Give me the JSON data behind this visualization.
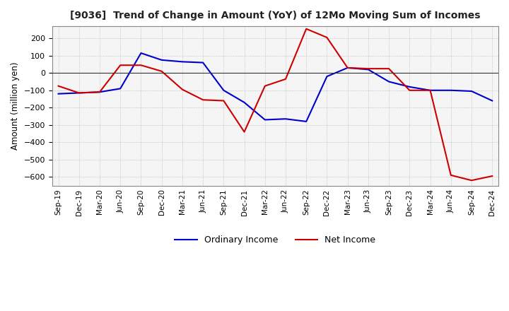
{
  "title": "[9036]  Trend of Change in Amount (YoY) of 12Mo Moving Sum of Incomes",
  "ylabel": "Amount (million yen)",
  "ylim": [
    -650,
    270
  ],
  "yticks": [
    200,
    100,
    0,
    -100,
    -200,
    -300,
    -400,
    -500,
    -600
  ],
  "background_color": "#ffffff",
  "plot_bg_color": "#f5f5f5",
  "grid_color": "#aaaaaa",
  "ordinary_income_color": "#0000cc",
  "net_income_color": "#cc0000",
  "x_labels": [
    "Sep-19",
    "Dec-19",
    "Mar-20",
    "Jun-20",
    "Sep-20",
    "Dec-20",
    "Mar-21",
    "Jun-21",
    "Sep-21",
    "Dec-21",
    "Mar-22",
    "Jun-22",
    "Sep-22",
    "Dec-22",
    "Mar-23",
    "Jun-23",
    "Sep-23",
    "Dec-23",
    "Mar-24",
    "Jun-24",
    "Sep-24",
    "Dec-24"
  ],
  "ordinary_income": [
    -120,
    -115,
    -110,
    -90,
    115,
    75,
    65,
    60,
    -100,
    -170,
    -270,
    -265,
    -280,
    -20,
    30,
    20,
    -50,
    -80,
    -100,
    -100,
    -105,
    -160
  ],
  "net_income": [
    -75,
    -115,
    -110,
    45,
    45,
    10,
    -95,
    -155,
    -160,
    -340,
    -75,
    -35,
    255,
    205,
    30,
    25,
    25,
    -100,
    -100,
    -590,
    -620,
    -595
  ],
  "legend_labels": [
    "Ordinary Income",
    "Net Income"
  ]
}
